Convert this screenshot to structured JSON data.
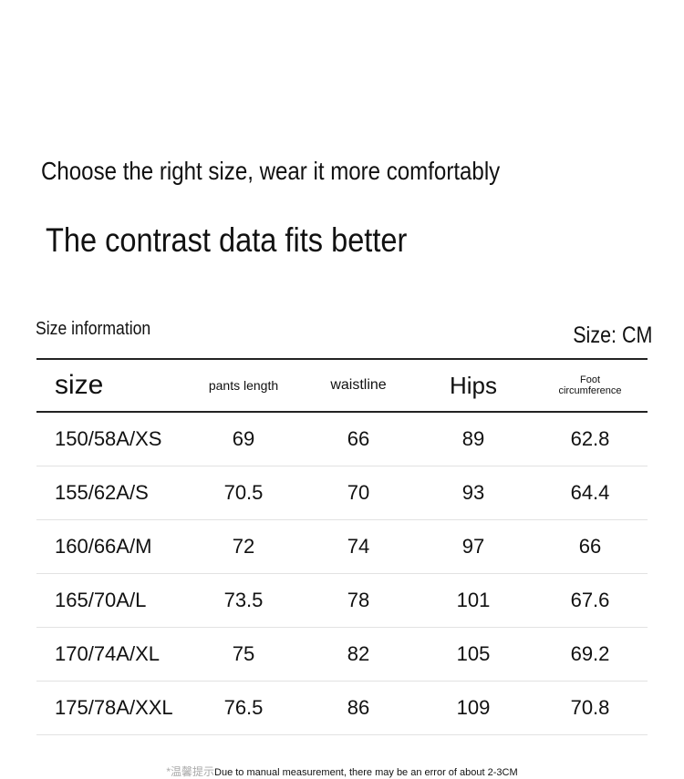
{
  "header": {
    "subtitle": "Choose the right size, wear it more comfortably",
    "title": "The contrast data fits better"
  },
  "table": {
    "caption": "Size information",
    "unit": "Size: CM",
    "columns": [
      "size",
      "pants length",
      "waistline",
      "Hips",
      "Foot circumference"
    ],
    "rows": [
      [
        "150/58A/XS",
        69,
        66,
        89,
        62.8
      ],
      [
        "155/62A/S",
        70.5,
        70,
        93,
        64.4
      ],
      [
        "160/66A/M",
        72,
        74,
        97,
        66
      ],
      [
        "165/70A/L",
        73.5,
        78,
        101,
        67.6
      ],
      [
        "170/74A/XL",
        75,
        82,
        105,
        69.2
      ],
      [
        "175/78A/XXL",
        76.5,
        86,
        109,
        70.8
      ]
    ]
  },
  "footnote": {
    "prefix": "*温馨提示",
    "text": "Due to manual measurement, there may be an error of about 2-3CM"
  }
}
